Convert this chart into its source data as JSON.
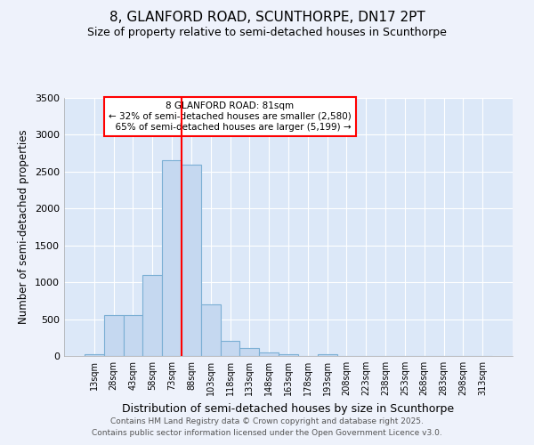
{
  "title": "8, GLANFORD ROAD, SCUNTHORPE, DN17 2PT",
  "subtitle": "Size of property relative to semi-detached houses in Scunthorpe",
  "xlabel": "Distribution of semi-detached houses by size in Scunthorpe",
  "ylabel": "Number of semi-detached properties",
  "bin_labels": [
    "13sqm",
    "28sqm",
    "43sqm",
    "58sqm",
    "73sqm",
    "88sqm",
    "103sqm",
    "118sqm",
    "133sqm",
    "148sqm",
    "163sqm",
    "178sqm",
    "193sqm",
    "208sqm",
    "223sqm",
    "238sqm",
    "253sqm",
    "268sqm",
    "283sqm",
    "298sqm",
    "313sqm"
  ],
  "bar_values": [
    30,
    550,
    550,
    1100,
    2660,
    2600,
    700,
    200,
    110,
    50,
    30,
    5,
    30,
    0,
    0,
    0,
    0,
    0,
    0,
    0,
    0
  ],
  "bar_color": "#c5d8f0",
  "bar_edge_color": "#7bafd4",
  "red_line_x": 4.5,
  "property_label": "8 GLANFORD ROAD: 81sqm",
  "smaller_pct": 32,
  "smaller_count": 2580,
  "larger_pct": 65,
  "larger_count": 5199,
  "ylim": [
    0,
    3500
  ],
  "yticks": [
    0,
    500,
    1000,
    1500,
    2000,
    2500,
    3000,
    3500
  ],
  "footnote1": "Contains HM Land Registry data © Crown copyright and database right 2025.",
  "footnote2": "Contains public sector information licensed under the Open Government Licence v3.0.",
  "bg_color": "#eef2fb",
  "plot_bg_color": "#dce8f8"
}
